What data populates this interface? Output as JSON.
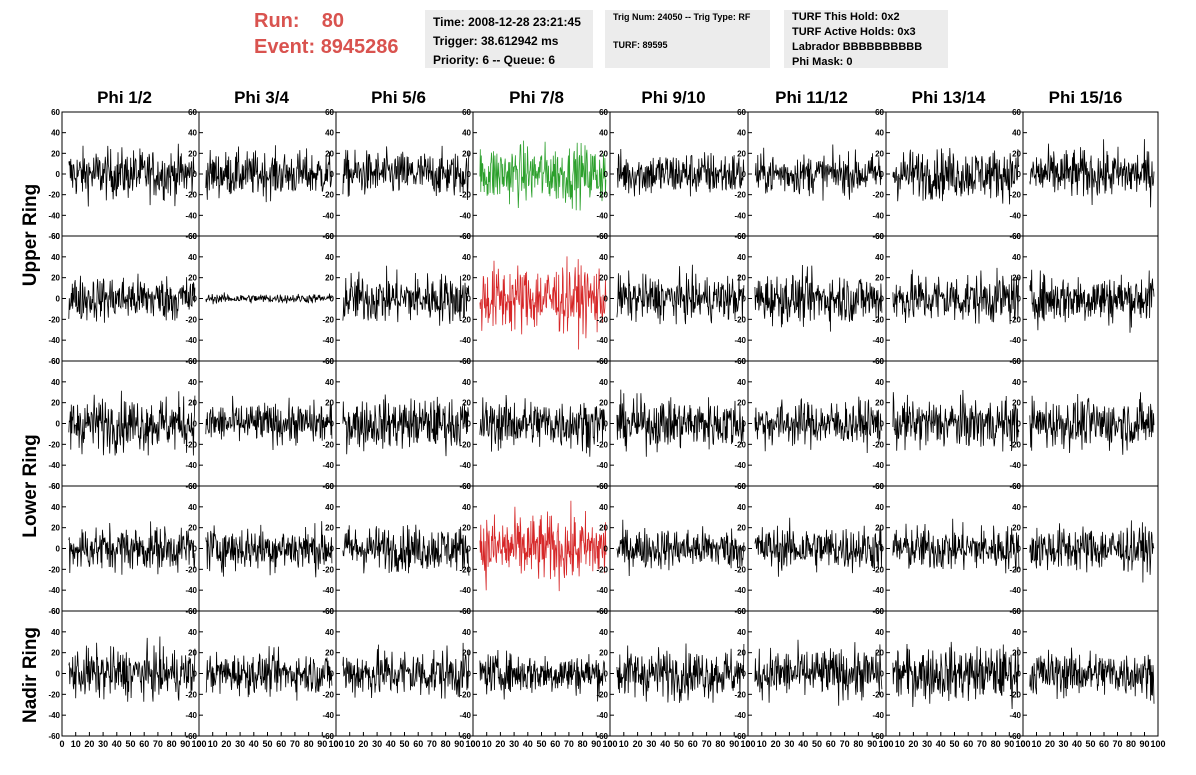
{
  "header": {
    "run_label": "Run:",
    "run_value": "80",
    "event_label": "Event:",
    "event_value": "8945286",
    "time": "Time: 2008-12-28 23:21:45",
    "trigger": "Trigger: 38.612942 ms",
    "priority": "Priority: 6 -- Queue: 6",
    "trig_num": "Trig Num: 24050 -- Trig Type: RF",
    "turf": "TURF: 89595",
    "turf_this_hold": "TURF This Hold: 0x2",
    "turf_active_holds": "TURF Active Holds: 0x3",
    "labrador": "Labrador BBBBBBBBBB",
    "phi_mask": "Phi Mask: 0"
  },
  "colors": {
    "header_red": "#d9534f",
    "trace": "#000000",
    "trace_green": "#2ca02c",
    "trace_red": "#d62728"
  },
  "chart_data": {
    "type": "line",
    "columns": [
      "Phi 1/2",
      "Phi 3/4",
      "Phi 5/6",
      "Phi 7/8",
      "Phi 9/10",
      "Phi 11/12",
      "Phi 13/14",
      "Phi 15/16"
    ],
    "rows": [
      "Upper Ring",
      "Lower Ring",
      "Nadir Ring"
    ],
    "row_spans": [
      2,
      2,
      1
    ],
    "ylim": [
      -60,
      60
    ],
    "yticks": [
      -60,
      -40,
      -20,
      0,
      20,
      40,
      60
    ],
    "xlim": [
      0,
      100
    ],
    "xtick_labels": [
      "0",
      "10",
      "20",
      "30",
      "40",
      "50",
      "60",
      "70",
      "80",
      "90",
      "100"
    ],
    "panel_amplitudes": [
      [
        22,
        20,
        20,
        26,
        20,
        18,
        22,
        22
      ],
      [
        20,
        4,
        22,
        30,
        20,
        22,
        22,
        22
      ],
      [
        24,
        18,
        22,
        22,
        22,
        20,
        22,
        22
      ],
      [
        20,
        20,
        20,
        30,
        18,
        20,
        20,
        20
      ],
      [
        22,
        18,
        22,
        18,
        22,
        22,
        24,
        20
      ]
    ],
    "highlighted_panels": [
      {
        "row": 0,
        "col": 3,
        "color": "green"
      },
      {
        "row": 1,
        "col": 3,
        "color": "red"
      },
      {
        "row": 3,
        "col": 3,
        "color": "red"
      }
    ]
  }
}
